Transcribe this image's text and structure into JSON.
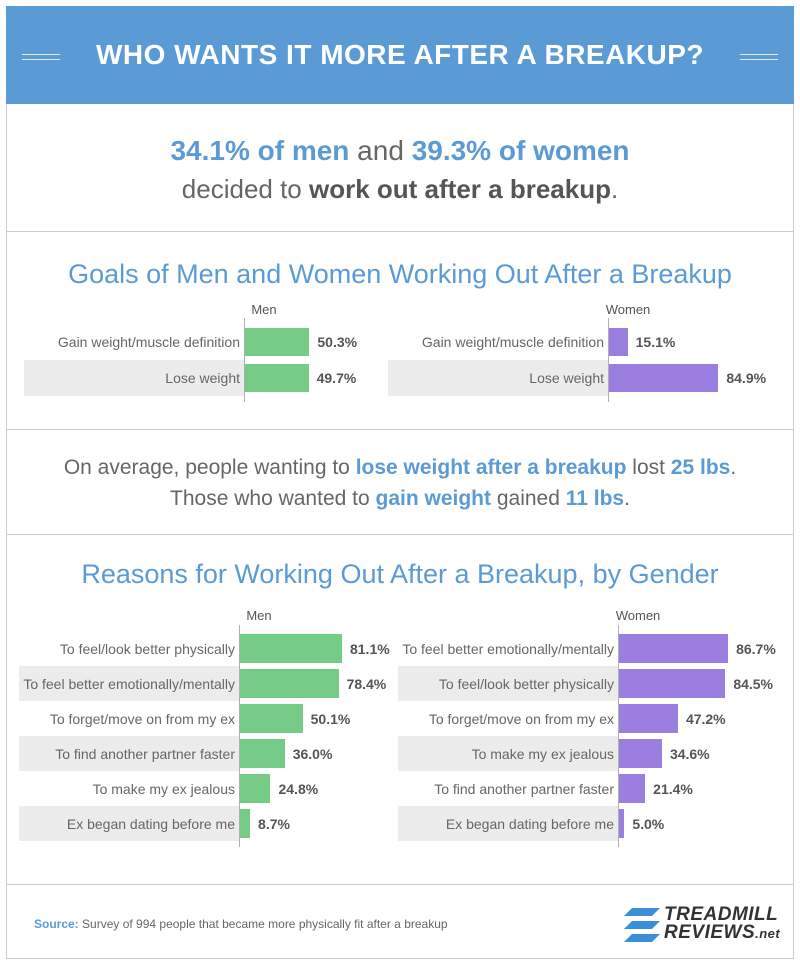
{
  "header": {
    "title": "WHO WANTS IT MORE AFTER A BREAKUP?"
  },
  "stat1": {
    "men_pct": "34.1% of men",
    "and": " and ",
    "women_pct": "39.3% of women",
    "line2_pre": "decided to ",
    "line2_bold": "work out after a breakup",
    "line2_post": "."
  },
  "stat2": {
    "p1": "On average, people wanting to ",
    "h1": "lose weight after a breakup",
    "p2": " lost ",
    "b1": "25 lbs",
    "p3": ".",
    "p4": "Those who wanted to ",
    "h2": "gain weight",
    "p5": " gained ",
    "b2": "11 lbs",
    "p6": "."
  },
  "chart_data": [
    {
      "type": "bar",
      "orientation": "horizontal",
      "title": "Goals of Men and Women Working Out After a Breakup",
      "panels": [
        {
          "name": "Men",
          "color": "#76cc86",
          "categories": [
            "Gain weight/muscle definition",
            "Lose weight"
          ],
          "values": [
            50.3,
            49.7
          ],
          "labels": [
            "50.3%",
            "49.7%"
          ]
        },
        {
          "name": "Women",
          "color": "#9b7fe0",
          "categories": [
            "Gain weight/muscle definition",
            "Lose weight"
          ],
          "values": [
            15.1,
            84.9
          ],
          "labels": [
            "15.1%",
            "84.9%"
          ]
        }
      ],
      "xlim": [
        0,
        100
      ]
    },
    {
      "type": "bar",
      "orientation": "horizontal",
      "title": "Reasons for Working Out After a Breakup, by Gender",
      "panels": [
        {
          "name": "Men",
          "color": "#76cc86",
          "categories": [
            "To feel/look better physically",
            "To feel better emotionally/mentally",
            "To forget/move on from my ex",
            "To find another partner faster",
            "To make my ex jealous",
            "Ex began dating before me"
          ],
          "values": [
            81.1,
            78.4,
            50.1,
            36.0,
            24.8,
            8.7
          ],
          "labels": [
            "81.1%",
            "78.4%",
            "50.1%",
            "36.0%",
            "24.8%",
            "8.7%"
          ]
        },
        {
          "name": "Women",
          "color": "#9b7fe0",
          "categories": [
            "To feel better emotionally/mentally",
            "To feel/look better physically",
            "To forget/move on from my ex",
            "To make my ex jealous",
            "To find another partner faster",
            "Ex began dating before me"
          ],
          "values": [
            86.7,
            84.5,
            47.2,
            34.6,
            21.4,
            5.0
          ],
          "labels": [
            "86.7%",
            "84.5%",
            "47.2%",
            "34.6%",
            "21.4%",
            "5.0%"
          ]
        }
      ],
      "xlim": [
        0,
        100
      ]
    }
  ],
  "source": {
    "label": "Source:",
    "text": " Survey of 994 people that became more physically fit after a breakup"
  },
  "logo": {
    "line1": "TREADMILL",
    "line2": "REVIEWS",
    "suffix": ".net",
    "icon": "stripes-logo-icon"
  }
}
